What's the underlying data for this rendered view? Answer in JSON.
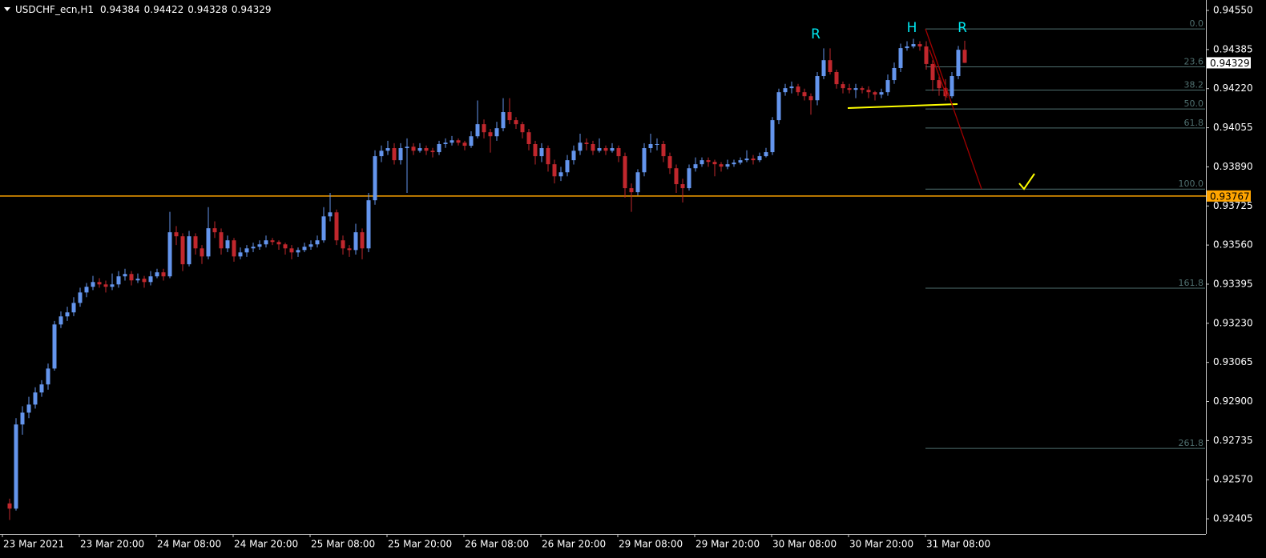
{
  "chart_data": {
    "type": "candlestick",
    "symbol": "USDCHF_ecn,H1",
    "up_color": "#6495ed",
    "down_color": "#c1272d",
    "ylim": [
      0.92341,
      0.94594
    ],
    "yticks": [
      {
        "value": 0.9455,
        "label": "0.94550"
      },
      0.94385,
      {
        "value": 0.9422,
        "label": "0.94220"
      },
      0.94055,
      {
        "value": 0.9389,
        "label": "0.93890"
      },
      0.93725,
      {
        "value": 0.9356,
        "label": "0.93560"
      },
      0.93395,
      {
        "value": 0.9323,
        "label": "0.93230"
      },
      0.93065,
      {
        "value": 0.929,
        "label": "0.92900"
      },
      0.92735,
      {
        "value": 0.9257,
        "label": "0.92570"
      },
      0.92405
    ],
    "xticks": [
      {
        "value": 0,
        "label": "23 Mar 2021"
      },
      {
        "value": 12,
        "label": "23 Mar 20:00"
      },
      {
        "value": 24,
        "label": "24 Mar 08:00"
      },
      {
        "value": 36,
        "label": "24 Mar 20:00"
      },
      {
        "value": 48,
        "label": "25 Mar 08:00"
      },
      {
        "value": 60,
        "label": "25 Mar 20:00"
      },
      {
        "value": 72,
        "label": "26 Mar 08:00"
      },
      {
        "value": 84,
        "label": "26 Mar 20:00"
      },
      {
        "value": 96,
        "label": "29 Mar 08:00"
      },
      {
        "value": 108,
        "label": "29 Mar 20:00"
      },
      {
        "value": 120,
        "label": "30 Mar 08:00"
      },
      {
        "value": 132,
        "label": "30 Mar 20:00"
      },
      {
        "value": 144,
        "label": "31 Mar 08:00"
      }
    ],
    "support_level": 0.93767,
    "support_color": "#ffa500",
    "annotations": [
      "R",
      "H",
      "R"
    ],
    "fib": {
      "color": "#4f6f6f",
      "levels": [
        {
          "value": 0,
          "label": "0.0"
        },
        23.6,
        38.2,
        {
          "value": 50,
          "label": "50.0"
        },
        61.8,
        {
          "value": 100,
          "label": "100.0"
        },
        161.8,
        261.8
      ],
      "prices": [
        0.94472,
        0.94312,
        0.94214,
        0.94134,
        0.94054,
        0.93796,
        0.93378,
        0.92702
      ]
    },
    "candles": [
      [
        0.9247,
        0.9249,
        0.924,
        0.92448
      ],
      [
        0.92448,
        0.9283,
        0.9244,
        0.92803
      ],
      [
        0.92803,
        0.9288,
        0.9276,
        0.92853
      ],
      [
        0.92853,
        0.9292,
        0.9283,
        0.92887
      ],
      [
        0.92887,
        0.9296,
        0.9287,
        0.92938
      ],
      [
        0.92938,
        0.9299,
        0.9292,
        0.92972
      ],
      [
        0.92972,
        0.9306,
        0.9295,
        0.93039
      ],
      [
        0.93039,
        0.9324,
        0.9303,
        0.93225
      ],
      [
        0.93225,
        0.9328,
        0.9321,
        0.93259
      ],
      [
        0.93259,
        0.933,
        0.9324,
        0.93276
      ],
      [
        0.93276,
        0.9334,
        0.9326,
        0.93316
      ],
      [
        0.93316,
        0.9338,
        0.933,
        0.9336
      ],
      [
        0.9336,
        0.934,
        0.9334,
        0.93384
      ],
      [
        0.93384,
        0.9343,
        0.9337,
        0.93404
      ],
      [
        0.93404,
        0.9342,
        0.9338,
        0.93394
      ],
      [
        0.93394,
        0.9341,
        0.9336,
        0.93384
      ],
      [
        0.93384,
        0.9344,
        0.9337,
        0.93394
      ],
      [
        0.93394,
        0.9345,
        0.9338,
        0.93428
      ],
      [
        0.93428,
        0.9346,
        0.9341,
        0.93438
      ],
      [
        0.93438,
        0.9345,
        0.9339,
        0.93411
      ],
      [
        0.93411,
        0.9344,
        0.934,
        0.93418
      ],
      [
        0.93418,
        0.9343,
        0.9338,
        0.93404
      ],
      [
        0.93404,
        0.9345,
        0.9339,
        0.93428
      ],
      [
        0.93428,
        0.9346,
        0.9342,
        0.93445
      ],
      [
        0.93445,
        0.9346,
        0.9341,
        0.93428
      ],
      [
        0.93428,
        0.937,
        0.9342,
        0.93614
      ],
      [
        0.93614,
        0.9364,
        0.9356,
        0.93597
      ],
      [
        0.93597,
        0.9361,
        0.9345,
        0.93479
      ],
      [
        0.93479,
        0.9362,
        0.9347,
        0.93597
      ],
      [
        0.93597,
        0.9361,
        0.9352,
        0.93546
      ],
      [
        0.93546,
        0.9356,
        0.9348,
        0.93512
      ],
      [
        0.93512,
        0.9372,
        0.935,
        0.93631
      ],
      [
        0.93631,
        0.9366,
        0.9359,
        0.93614
      ],
      [
        0.93614,
        0.9363,
        0.9352,
        0.93546
      ],
      [
        0.93546,
        0.936,
        0.9353,
        0.9358
      ],
      [
        0.9358,
        0.9359,
        0.9349,
        0.93512
      ],
      [
        0.93512,
        0.9355,
        0.935,
        0.93529
      ],
      [
        0.93529,
        0.9356,
        0.9351,
        0.93546
      ],
      [
        0.93546,
        0.9357,
        0.9353,
        0.93553
      ],
      [
        0.93553,
        0.9358,
        0.9354,
        0.93563
      ],
      [
        0.93563,
        0.936,
        0.9355,
        0.9358
      ],
      [
        0.9358,
        0.9359,
        0.9356,
        0.93573
      ],
      [
        0.93573,
        0.9358,
        0.9354,
        0.93563
      ],
      [
        0.93563,
        0.9357,
        0.9352,
        0.93546
      ],
      [
        0.93546,
        0.9356,
        0.935,
        0.93529
      ],
      [
        0.93529,
        0.9355,
        0.9351,
        0.93539
      ],
      [
        0.93539,
        0.9357,
        0.9353,
        0.93553
      ],
      [
        0.93553,
        0.9358,
        0.9354,
        0.93563
      ],
      [
        0.93563,
        0.936,
        0.9355,
        0.9358
      ],
      [
        0.9358,
        0.9372,
        0.9357,
        0.93681
      ],
      [
        0.93681,
        0.9378,
        0.9366,
        0.93698
      ],
      [
        0.93698,
        0.9371,
        0.9356,
        0.9358
      ],
      [
        0.9358,
        0.936,
        0.9352,
        0.93546
      ],
      [
        0.93546,
        0.9356,
        0.9351,
        0.93539
      ],
      [
        0.93539,
        0.9365,
        0.9352,
        0.93614
      ],
      [
        0.93614,
        0.9363,
        0.935,
        0.93546
      ],
      [
        0.93546,
        0.9378,
        0.9353,
        0.93749
      ],
      [
        0.93749,
        0.9396,
        0.9373,
        0.93935
      ],
      [
        0.93935,
        0.9398,
        0.9391,
        0.93958
      ],
      [
        0.93958,
        0.94,
        0.9394,
        0.93969
      ],
      [
        0.93969,
        0.9399,
        0.939,
        0.93918
      ],
      [
        0.93918,
        0.9399,
        0.939,
        0.93969
      ],
      [
        0.93969,
        0.9401,
        0.9378,
        0.93975
      ],
      [
        0.93975,
        0.9399,
        0.9394,
        0.93958
      ],
      [
        0.93958,
        0.9399,
        0.9395,
        0.93969
      ],
      [
        0.93969,
        0.9398,
        0.9394,
        0.93958
      ],
      [
        0.93958,
        0.9397,
        0.9393,
        0.93952
      ],
      [
        0.93952,
        0.94,
        0.9394,
        0.93986
      ],
      [
        0.93986,
        0.9401,
        0.9397,
        0.93992
      ],
      [
        0.93992,
        0.9402,
        0.9398,
        0.94002
      ],
      [
        0.94002,
        0.9401,
        0.9398,
        0.93992
      ],
      [
        0.93992,
        0.94,
        0.9396,
        0.93979
      ],
      [
        0.93979,
        0.9404,
        0.9397,
        0.94019
      ],
      [
        0.94019,
        0.9417,
        0.9401,
        0.9407
      ],
      [
        0.9407,
        0.9409,
        0.9401,
        0.94036
      ],
      [
        0.94036,
        0.9405,
        0.9395,
        0.94019
      ],
      [
        0.94019,
        0.9408,
        0.94,
        0.94053
      ],
      [
        0.94053,
        0.9418,
        0.9404,
        0.94121
      ],
      [
        0.94121,
        0.9418,
        0.9407,
        0.94087
      ],
      [
        0.94087,
        0.941,
        0.9405,
        0.9407
      ],
      [
        0.9407,
        0.9408,
        0.9401,
        0.94036
      ],
      [
        0.94036,
        0.9405,
        0.9396,
        0.93986
      ],
      [
        0.93986,
        0.94,
        0.939,
        0.93935
      ],
      [
        0.93935,
        0.9399,
        0.9391,
        0.93969
      ],
      [
        0.93969,
        0.9398,
        0.9387,
        0.93901
      ],
      [
        0.93901,
        0.9392,
        0.9382,
        0.9385
      ],
      [
        0.9385,
        0.9389,
        0.9383,
        0.93867
      ],
      [
        0.93867,
        0.9394,
        0.9385,
        0.93918
      ],
      [
        0.93918,
        0.9398,
        0.939,
        0.93958
      ],
      [
        0.93958,
        0.9403,
        0.9394,
        0.93992
      ],
      [
        0.93992,
        0.9401,
        0.9396,
        0.93986
      ],
      [
        0.93986,
        0.94,
        0.9394,
        0.93958
      ],
      [
        0.93958,
        0.9401,
        0.9395,
        0.93969
      ],
      [
        0.93969,
        0.9398,
        0.9394,
        0.93958
      ],
      [
        0.93958,
        0.9399,
        0.9395,
        0.93969
      ],
      [
        0.93969,
        0.9398,
        0.9391,
        0.93935
      ],
      [
        0.93935,
        0.9395,
        0.9376,
        0.938
      ],
      [
        0.938,
        0.9382,
        0.937,
        0.93783
      ],
      [
        0.93783,
        0.9388,
        0.9377,
        0.93867
      ],
      [
        0.93867,
        0.9399,
        0.9385,
        0.93969
      ],
      [
        0.93969,
        0.9403,
        0.9395,
        0.93986
      ],
      [
        0.93986,
        0.9401,
        0.9396,
        0.93986
      ],
      [
        0.93986,
        0.94,
        0.9391,
        0.93935
      ],
      [
        0.93935,
        0.9395,
        0.9386,
        0.93884
      ],
      [
        0.93884,
        0.939,
        0.9378,
        0.93817
      ],
      [
        0.93817,
        0.9384,
        0.9374,
        0.938
      ],
      [
        0.938,
        0.939,
        0.9379,
        0.93884
      ],
      [
        0.93884,
        0.9393,
        0.9387,
        0.93901
      ],
      [
        0.93901,
        0.9393,
        0.9389,
        0.93918
      ],
      [
        0.93918,
        0.9393,
        0.9389,
        0.93911
      ],
      [
        0.93911,
        0.9392,
        0.9385,
        0.93901
      ],
      [
        0.93901,
        0.9391,
        0.9387,
        0.93891
      ],
      [
        0.93891,
        0.9392,
        0.9388,
        0.93901
      ],
      [
        0.93901,
        0.9392,
        0.9389,
        0.93908
      ],
      [
        0.93908,
        0.9393,
        0.939,
        0.93918
      ],
      [
        0.93918,
        0.9396,
        0.9391,
        0.93925
      ],
      [
        0.93925,
        0.9394,
        0.939,
        0.93918
      ],
      [
        0.93918,
        0.9395,
        0.9391,
        0.93935
      ],
      [
        0.93935,
        0.9397,
        0.9393,
        0.93952
      ],
      [
        0.93952,
        0.941,
        0.9394,
        0.94087
      ],
      [
        0.94087,
        0.9422,
        0.9407,
        0.94205
      ],
      [
        0.94205,
        0.9424,
        0.9419,
        0.94222
      ],
      [
        0.94222,
        0.9425,
        0.942,
        0.94229
      ],
      [
        0.94229,
        0.9424,
        0.9419,
        0.94205
      ],
      [
        0.94205,
        0.9422,
        0.9417,
        0.94188
      ],
      [
        0.94188,
        0.942,
        0.9411,
        0.94171
      ],
      [
        0.94171,
        0.9429,
        0.9415,
        0.94273
      ],
      [
        0.94273,
        0.9439,
        0.9426,
        0.9434
      ],
      [
        0.9434,
        0.9439,
        0.9428,
        0.9429
      ],
      [
        0.9429,
        0.943,
        0.9422,
        0.94239
      ],
      [
        0.94239,
        0.9425,
        0.942,
        0.94222
      ],
      [
        0.94222,
        0.9424,
        0.942,
        0.94215
      ],
      [
        0.94215,
        0.9424,
        0.9418,
        0.94222
      ],
      [
        0.94222,
        0.9423,
        0.942,
        0.94215
      ],
      [
        0.94215,
        0.9423,
        0.9418,
        0.94205
      ],
      [
        0.94205,
        0.9421,
        0.9417,
        0.94195
      ],
      [
        0.94195,
        0.9422,
        0.9418,
        0.94205
      ],
      [
        0.94205,
        0.9428,
        0.9419,
        0.94256
      ],
      [
        0.94256,
        0.9433,
        0.9424,
        0.94307
      ],
      [
        0.94307,
        0.9441,
        0.9429,
        0.94391
      ],
      [
        0.94391,
        0.9442,
        0.9438,
        0.94398
      ],
      [
        0.94398,
        0.9443,
        0.9439,
        0.94408
      ],
      [
        0.94408,
        0.9442,
        0.9438,
        0.94398
      ],
      [
        0.94398,
        0.9442,
        0.943,
        0.94324
      ],
      [
        0.94324,
        0.9434,
        0.9421,
        0.94256
      ],
      [
        0.94256,
        0.9428,
        0.9419,
        0.94222
      ],
      [
        0.94222,
        0.9426,
        0.9417,
        0.94188
      ],
      [
        0.94188,
        0.9429,
        0.9418,
        0.94273
      ],
      [
        0.94273,
        0.944,
        0.9426,
        0.94384
      ],
      [
        0.94384,
        0.94422,
        0.94328,
        0.94329
      ]
    ]
  }
}
